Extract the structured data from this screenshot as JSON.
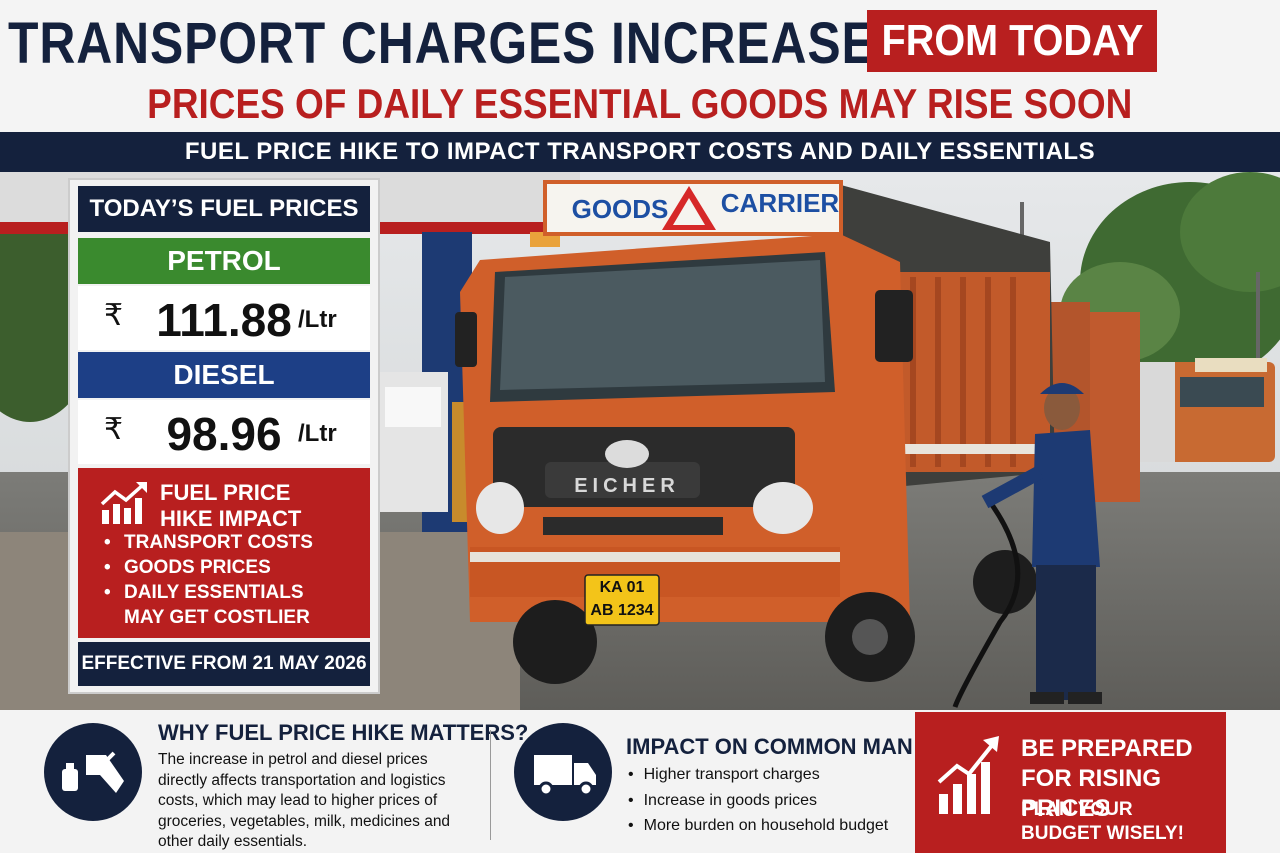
{
  "header": {
    "title_main": "TRANSPORT CHARGES INCREASE",
    "title_highlight": "FROM TODAY",
    "subtitle": "PRICES OF DAILY ESSENTIAL GOODS MAY RISE SOON",
    "banner": "FUEL PRICE HIKE TO IMPACT TRANSPORT COSTS AND DAILY ESSENTIALS"
  },
  "fuel_board": {
    "title": "TODAY’S FUEL PRICES",
    "fuels": [
      {
        "name": "PETROL",
        "currency": "₹",
        "price": 111.88,
        "unit": "/Ltr"
      },
      {
        "name": "DIESEL",
        "currency": "₹",
        "price": 98.96,
        "unit": "/Ltr"
      }
    ],
    "impact": {
      "title": "FUEL PRICE HIKE IMPACT",
      "items": [
        "TRANSPORT COSTS",
        "GOODS PRICES",
        "DAILY ESSENTIALS MAY GET COSTLIER"
      ]
    },
    "effective": "EFFECTIVE FROM 21 MAY 2026"
  },
  "truck": {
    "sign_left": "GOODS",
    "sign_right": "CARRIER",
    "brand": "EICHER",
    "plate_line1": "KA 01",
    "plate_line2": "AB 1234"
  },
  "why": {
    "title": "WHY FUEL PRICE HIKE MATTERS?",
    "text": "The increase in petrol and diesel prices directly affects transportation and logistics costs, which may lead to higher prices of groceries, vegetables, milk, medicines and other daily essentials."
  },
  "common_man": {
    "title": "IMPACT ON COMMON MAN",
    "items": [
      "Higher transport charges",
      "Increase in goods prices",
      "More burden on household budget"
    ]
  },
  "cta": {
    "title": "BE PREPARED FOR RISING PRICES",
    "text": "PLAN YOUR BUDGET WISELY!"
  }
}
